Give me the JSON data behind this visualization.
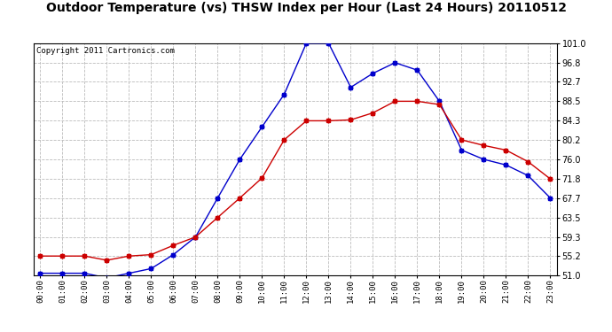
{
  "title": "Outdoor Temperature (vs) THSW Index per Hour (Last 24 Hours) 20110512",
  "copyright": "Copyright 2011 Cartronics.com",
  "hours": [
    "00:00",
    "01:00",
    "02:00",
    "03:00",
    "04:00",
    "05:00",
    "06:00",
    "07:00",
    "08:00",
    "09:00",
    "10:00",
    "11:00",
    "12:00",
    "13:00",
    "14:00",
    "15:00",
    "16:00",
    "17:00",
    "18:00",
    "19:00",
    "20:00",
    "21:00",
    "22:00",
    "23:00"
  ],
  "temp": [
    55.2,
    55.2,
    55.2,
    54.3,
    55.2,
    55.5,
    57.5,
    59.3,
    63.5,
    67.7,
    72.0,
    80.2,
    84.3,
    84.3,
    84.5,
    86.0,
    88.5,
    88.5,
    87.8,
    80.2,
    79.0,
    78.0,
    75.5,
    71.8
  ],
  "thsw": [
    51.5,
    51.5,
    51.5,
    50.5,
    51.5,
    52.5,
    55.5,
    59.3,
    67.7,
    76.0,
    83.0,
    90.0,
    101.0,
    101.0,
    91.5,
    94.5,
    96.8,
    95.2,
    88.5,
    78.0,
    76.0,
    74.8,
    72.5,
    67.7
  ],
  "temp_color": "#cc0000",
  "thsw_color": "#0000cc",
  "bg_color": "#ffffff",
  "plot_bg": "#ffffff",
  "grid_color": "#bbbbbb",
  "ylim": [
    51.0,
    101.0
  ],
  "yticks": [
    51.0,
    55.2,
    59.3,
    63.5,
    67.7,
    71.8,
    76.0,
    80.2,
    84.3,
    88.5,
    92.7,
    96.8,
    101.0
  ],
  "title_fontsize": 10,
  "copyright_fontsize": 6.5
}
